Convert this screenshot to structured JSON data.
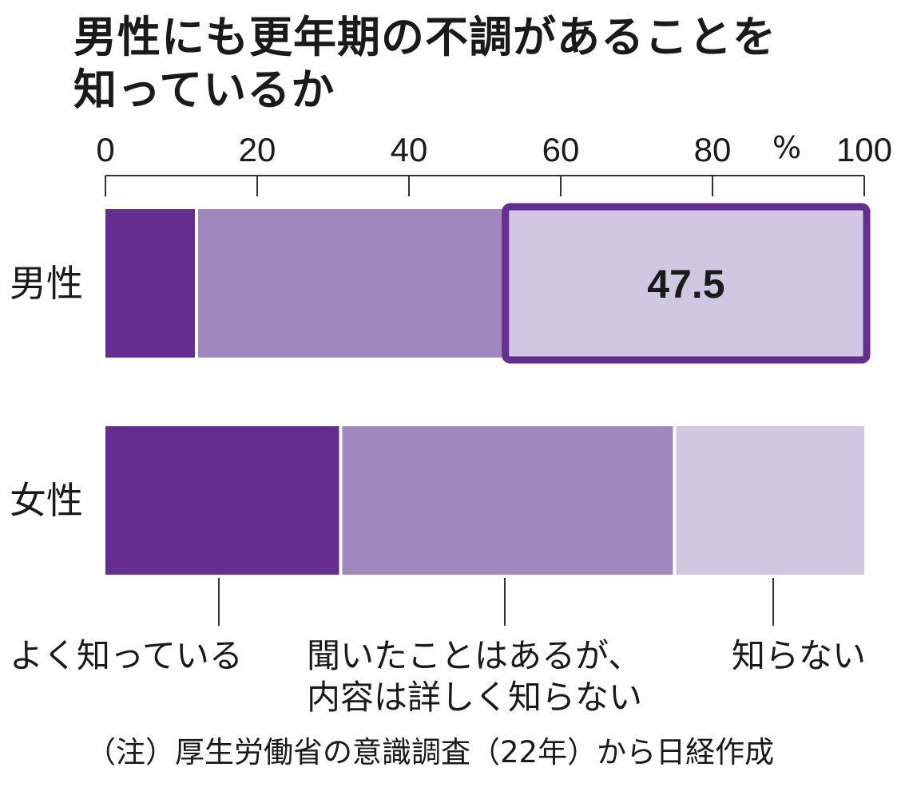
{
  "title_lines": [
    "男性にも更年期の不調があることを",
    "知っているか"
  ],
  "note": "（注）厚生労働省の意識調査（22年）から日経作成",
  "colors": {
    "dark": "#652d8f",
    "mid": "#a087bd",
    "light": "#d2c7e3",
    "highlight_border": "#652d8f",
    "axis": "#333333",
    "text": "#1a1a1a"
  },
  "chart_data": {
    "type": "bar",
    "orientation": "horizontal",
    "stacked": true,
    "unit": "%",
    "xlim": [
      0,
      100
    ],
    "x_ticks": [
      0,
      20,
      40,
      60,
      80,
      100
    ],
    "categories": [
      "男性",
      "女性"
    ],
    "series": [
      {
        "name": "よく知っている",
        "values": [
          12,
          31
        ]
      },
      {
        "name": "聞いたことはあるが、内容は詳しく知らない",
        "label_lines": [
          "聞いたことはあるが、",
          "内容は詳しく知らない"
        ],
        "values": [
          40.5,
          44
        ]
      },
      {
        "name": "知らない",
        "values": [
          47.5,
          25
        ]
      }
    ],
    "highlight": {
      "category": "男性",
      "series": "知らない",
      "label": "47.5"
    }
  }
}
